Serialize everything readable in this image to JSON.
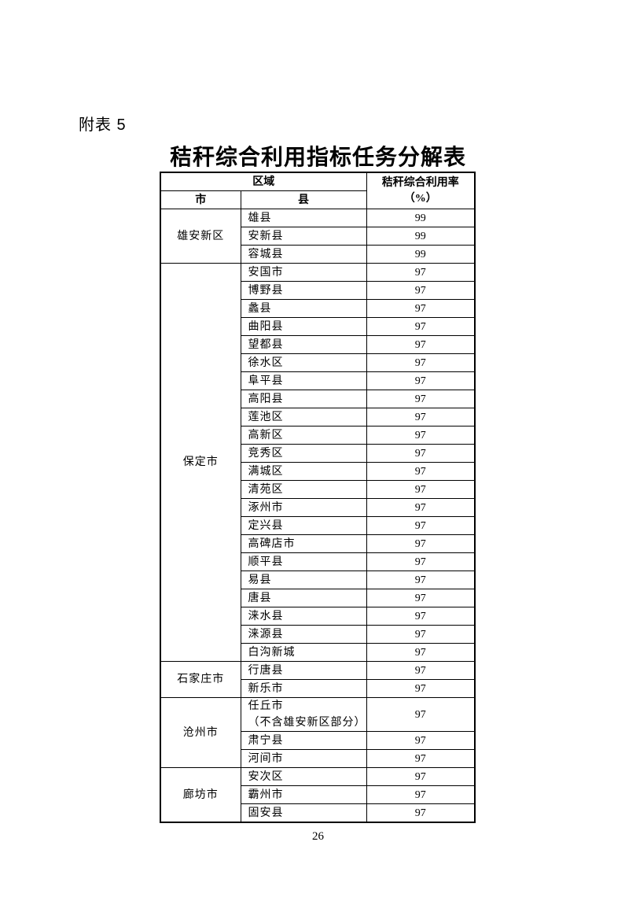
{
  "page": {
    "appendix_label": "附表 5",
    "title": "秸秆综合利用指标任务分解表",
    "page_number": "26"
  },
  "table": {
    "header": {
      "region": "区域",
      "city": "市",
      "county": "县",
      "rate_line1": "秸秆综合利用率",
      "rate_line2": "（%）"
    },
    "groups": [
      {
        "city": "雄安新区",
        "rows": [
          {
            "county": "雄县",
            "rate": "99"
          },
          {
            "county": "安新县",
            "rate": "99"
          },
          {
            "county": "容城县",
            "rate": "99"
          }
        ]
      },
      {
        "city": "保定市",
        "rows": [
          {
            "county": "安国市",
            "rate": "97"
          },
          {
            "county": "博野县",
            "rate": "97"
          },
          {
            "county": "蠡县",
            "rate": "97"
          },
          {
            "county": "曲阳县",
            "rate": "97"
          },
          {
            "county": "望都县",
            "rate": "97"
          },
          {
            "county": "徐水区",
            "rate": "97"
          },
          {
            "county": "阜平县",
            "rate": "97"
          },
          {
            "county": "高阳县",
            "rate": "97"
          },
          {
            "county": "莲池区",
            "rate": "97"
          },
          {
            "county": "高新区",
            "rate": "97"
          },
          {
            "county": "竞秀区",
            "rate": "97"
          },
          {
            "county": "满城区",
            "rate": "97"
          },
          {
            "county": "清苑区",
            "rate": "97"
          },
          {
            "county": "涿州市",
            "rate": "97"
          },
          {
            "county": "定兴县",
            "rate": "97"
          },
          {
            "county": "高碑店市",
            "rate": "97"
          },
          {
            "county": "顺平县",
            "rate": "97"
          },
          {
            "county": "易县",
            "rate": "97"
          },
          {
            "county": "唐县",
            "rate": "97"
          },
          {
            "county": "涞水县",
            "rate": "97"
          },
          {
            "county": "涞源县",
            "rate": "97"
          },
          {
            "county": "白沟新城",
            "rate": "97"
          }
        ]
      },
      {
        "city": "石家庄市",
        "rows": [
          {
            "county": "行唐县",
            "rate": "97"
          },
          {
            "county": "新乐市",
            "rate": "97"
          }
        ]
      },
      {
        "city": "沧州市",
        "rows": [
          {
            "county": "任丘市",
            "county_note": "（不含雄安新区部分）",
            "rate": "97"
          },
          {
            "county": "肃宁县",
            "rate": "97"
          },
          {
            "county": "河间市",
            "rate": "97"
          }
        ]
      },
      {
        "city": "廊坊市",
        "rows": [
          {
            "county": "安次区",
            "rate": "97"
          },
          {
            "county": "霸州市",
            "rate": "97"
          },
          {
            "county": "固安县",
            "rate": "97"
          }
        ]
      }
    ]
  }
}
